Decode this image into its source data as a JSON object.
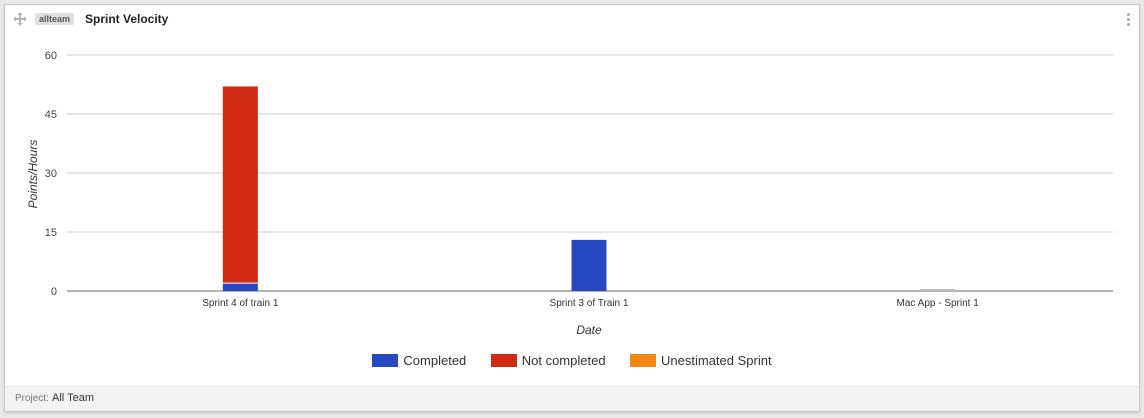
{
  "widget": {
    "tag": "allteam",
    "title": "Sprint Velocity",
    "footer_label": "Project:",
    "footer_value": "All Team"
  },
  "colors": {
    "completed": "#2649c1",
    "not_completed": "#d12a13",
    "unestimated": "#f5860f",
    "grid": "#cccccc",
    "axis": "#666666"
  },
  "icons": {
    "drag": "move-arrows-icon",
    "menu": "vertical-ellipsis-icon"
  },
  "chart_data": {
    "type": "bar",
    "stacked": true,
    "categories": [
      "Sprint 4 of train 1",
      "Sprint 3 of Train 1",
      "Mac App - Sprint 1"
    ],
    "series": [
      {
        "name": "Completed",
        "values": [
          2,
          13,
          0
        ]
      },
      {
        "name": "Not completed",
        "values": [
          50,
          0,
          0
        ]
      },
      {
        "name": "Unestimated Sprint",
        "values": [
          0,
          0,
          0
        ]
      }
    ],
    "xlabel": "Date",
    "ylabel": "Points/Hours",
    "ylim": [
      0,
      60
    ],
    "yticks": [
      0,
      15,
      30,
      45,
      60
    ],
    "grid": true,
    "legend_position": "bottom"
  }
}
